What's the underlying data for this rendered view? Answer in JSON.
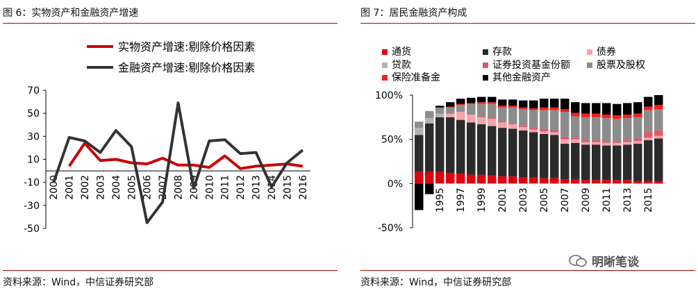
{
  "left": {
    "title": "图 6：实物资产和金融资产增速",
    "source": "资料来源：Wind，中信证券研究部"
  },
  "right": {
    "title": "图 7：居民金融资产构成",
    "source": "资料来源：Wind，中信证券研究部"
  },
  "watermark": "明晰笔谈",
  "colors": {
    "accent": "#b00000"
  },
  "chart_data": [
    {
      "type": "line",
      "title": "",
      "xlabel": "",
      "ylabel": "",
      "ylim": [
        -50,
        70
      ],
      "yticks": [
        -50,
        -30,
        -10,
        10,
        30,
        50,
        70
      ],
      "ytick_labels": [
        "-50",
        "-30",
        "-10",
        "10",
        "30",
        "50",
        "70"
      ],
      "categories": [
        "2000",
        "2001",
        "2002",
        "2003",
        "2004",
        "2005",
        "2006",
        "2007",
        "2008",
        "2009",
        "2010",
        "2011",
        "2012",
        "2013",
        "2014",
        "2015",
        "2016"
      ],
      "legend": "top",
      "series": [
        {
          "name": "实物资产增速:剔除价格因素",
          "color": "#cc0000",
          "values": [
            null,
            4,
            24,
            9,
            10,
            7,
            6,
            11,
            5,
            5,
            3,
            13,
            2,
            4,
            5,
            6,
            4
          ]
        },
        {
          "name": "金融资产增速:剔除价格因素",
          "color": "#333333",
          "values": [
            -10,
            29,
            26,
            16,
            35,
            21,
            -45,
            -27,
            59,
            -15,
            26,
            27,
            15,
            16,
            -14,
            7,
            18
          ]
        }
      ]
    },
    {
      "type": "bar",
      "stacked": true,
      "title": "",
      "ylim": [
        -50,
        100
      ],
      "yticks": [
        -50,
        0,
        50,
        100
      ],
      "ytick_labels": [
        "-50%",
        "0%",
        "50%",
        "100%"
      ],
      "categories": [
        "1993",
        "1994",
        "1995",
        "1996",
        "1997",
        "1998",
        "1999",
        "2000",
        "2001",
        "2002",
        "2003",
        "2004",
        "2005",
        "2006",
        "2007",
        "2008",
        "2009",
        "2010",
        "2011",
        "2012",
        "2013",
        "2014",
        "2015",
        "2016"
      ],
      "xtick_labels": [
        "1995",
        "1997",
        "1999",
        "2001",
        "2003",
        "2005",
        "2007",
        "2009",
        "2011",
        "2013",
        "2015"
      ],
      "legend": "top",
      "series": [
        {
          "name": "通货",
          "color": "#e0000f",
          "values": [
            13,
            14,
            13,
            12,
            11,
            10,
            10,
            9,
            8,
            8,
            7,
            7,
            6,
            6,
            5,
            5,
            4,
            4,
            4,
            4,
            4,
            3,
            3,
            3
          ]
        },
        {
          "name": "存款",
          "color": "#2b2b2b",
          "values": [
            42,
            54,
            62,
            63,
            61,
            59,
            57,
            56,
            55,
            54,
            53,
            51,
            50,
            49,
            40,
            41,
            40,
            40,
            39,
            39,
            40,
            42,
            46,
            48
          ]
        },
        {
          "name": "债券",
          "color": "#f4a4ab",
          "values": [
            0,
            0,
            0,
            4,
            9,
            9,
            8,
            8,
            6,
            5,
            4,
            3,
            3,
            3,
            5,
            4,
            3,
            3,
            3,
            3,
            3,
            3,
            3,
            3
          ]
        },
        {
          "name": "贷款",
          "color": "#b3b3b3",
          "values": [
            8,
            6,
            4,
            0,
            0,
            0,
            0,
            0,
            0,
            0,
            0,
            0,
            0,
            0,
            0,
            0,
            0,
            0,
            0,
            0,
            0,
            0,
            0,
            0
          ]
        },
        {
          "name": "证券投资基金份额",
          "color": "#e2576a",
          "values": [
            0,
            0,
            0,
            0,
            0,
            0,
            1,
            1,
            1,
            1,
            2,
            2,
            3,
            2,
            3,
            2,
            2,
            2,
            2,
            2,
            2,
            3,
            6,
            6
          ]
        },
        {
          "name": "股票及股权",
          "color": "#8c8c8c",
          "values": [
            7,
            8,
            7,
            7,
            8,
            12,
            14,
            16,
            16,
            18,
            18,
            20,
            21,
            23,
            28,
            24,
            26,
            26,
            26,
            25,
            25,
            24,
            25,
            24
          ]
        },
        {
          "name": "保险准备金",
          "color": "#ff1a1a",
          "values": [
            0,
            0,
            0,
            1,
            1,
            1,
            2,
            2,
            2,
            2,
            2,
            2,
            3,
            3,
            3,
            4,
            4,
            4,
            4,
            4,
            4,
            4,
            4,
            5
          ]
        },
        {
          "name": "其他金融资产",
          "color": "#000000",
          "values": [
            -30,
            -12,
            2,
            5,
            6,
            6,
            6,
            6,
            7,
            7,
            8,
            9,
            10,
            10,
            12,
            12,
            12,
            12,
            13,
            13,
            13,
            13,
            11,
            11
          ]
        }
      ]
    }
  ]
}
